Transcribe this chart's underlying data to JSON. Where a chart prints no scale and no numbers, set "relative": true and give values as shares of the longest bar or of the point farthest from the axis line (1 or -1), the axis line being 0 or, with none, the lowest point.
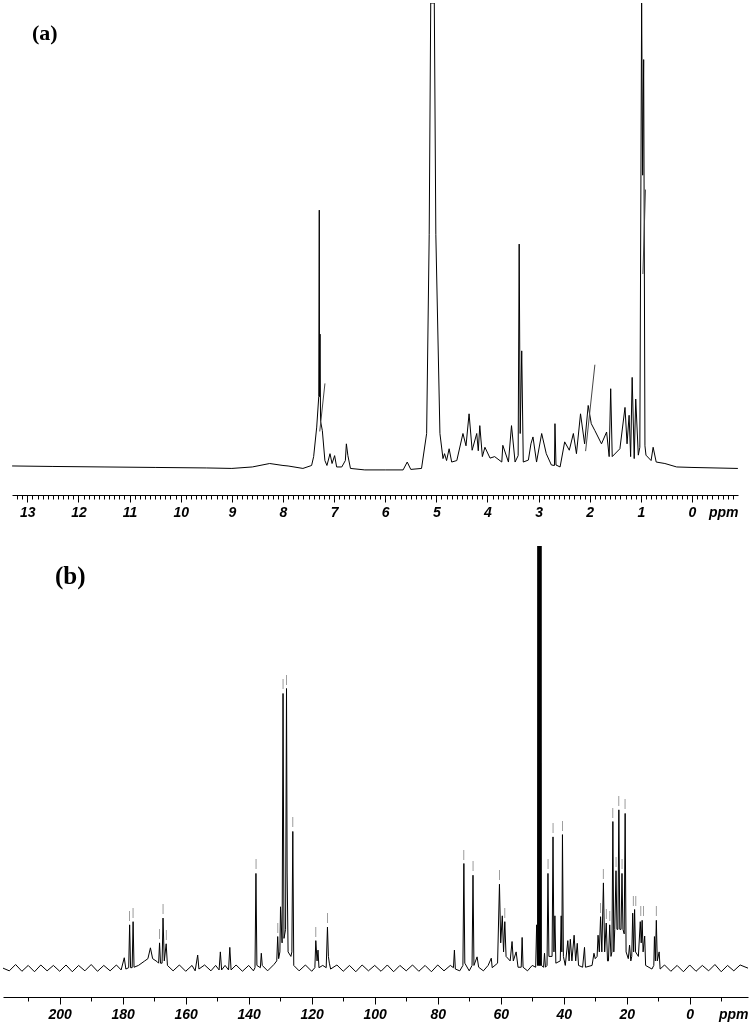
{
  "chart_data": [
    {
      "type": "line",
      "title": "(a)",
      "xlabel": "ppm",
      "relative": true,
      "xlim": [
        13.3,
        -0.9
      ],
      "xticks": [
        {
          "value": 13.2,
          "label": null
        },
        {
          "value": 13.1,
          "label": null
        },
        13,
        {
          "value": 12.9,
          "label": null
        },
        {
          "value": 12.8,
          "label": null
        },
        {
          "value": 12.7,
          "label": null
        },
        {
          "value": 12.6,
          "label": null
        },
        {
          "value": 12.5,
          "label": null
        },
        {
          "value": 12.4,
          "label": null
        },
        {
          "value": 12.3,
          "label": null
        },
        {
          "value": 12.2,
          "label": null
        },
        {
          "value": 12.1,
          "label": null
        },
        12,
        {
          "value": 11.9,
          "label": null
        },
        {
          "value": 11.8,
          "label": null
        },
        {
          "value": 11.7,
          "label": null
        },
        {
          "value": 11.6,
          "label": null
        },
        {
          "value": 11.5,
          "label": null
        },
        {
          "value": 11.4,
          "label": null
        },
        {
          "value": 11.3,
          "label": null
        },
        {
          "value": 11.2,
          "label": null
        },
        {
          "value": 11.1,
          "label": null
        },
        11,
        {
          "value": 10.9,
          "label": null
        },
        {
          "value": 10.8,
          "label": null
        },
        {
          "value": 10.7,
          "label": null
        },
        {
          "value": 10.6,
          "label": null
        },
        {
          "value": 10.5,
          "label": null
        },
        {
          "value": 10.4,
          "label": null
        },
        {
          "value": 10.3,
          "label": null
        },
        {
          "value": 10.2,
          "label": null
        },
        {
          "value": 10.1,
          "label": null
        },
        10,
        {
          "value": 9.9,
          "label": null
        },
        {
          "value": 9.8,
          "label": null
        },
        {
          "value": 9.7,
          "label": null
        },
        {
          "value": 9.6,
          "label": null
        },
        {
          "value": 9.5,
          "label": null
        },
        {
          "value": 9.4,
          "label": null
        },
        {
          "value": 9.3,
          "label": null
        },
        {
          "value": 9.2,
          "label": null
        },
        {
          "value": 9.1,
          "label": null
        },
        9,
        {
          "value": 8.9,
          "label": null
        },
        {
          "value": 8.8,
          "label": null
        },
        {
          "value": 8.7,
          "label": null
        },
        {
          "value": 8.6,
          "label": null
        },
        {
          "value": 8.5,
          "label": null
        },
        {
          "value": 8.4,
          "label": null
        },
        {
          "value": 8.3,
          "label": null
        },
        {
          "value": 8.2,
          "label": null
        },
        {
          "value": 8.1,
          "label": null
        },
        8,
        {
          "value": 7.9,
          "label": null
        },
        {
          "value": 7.8,
          "label": null
        },
        {
          "value": 7.7,
          "label": null
        },
        {
          "value": 7.6,
          "label": null
        },
        {
          "value": 7.5,
          "label": null
        },
        {
          "value": 7.4,
          "label": null
        },
        {
          "value": 7.3,
          "label": null
        },
        {
          "value": 7.2,
          "label": null
        },
        {
          "value": 7.1,
          "label": null
        },
        7,
        {
          "value": 6.9,
          "label": null
        },
        {
          "value": 6.8,
          "label": null
        },
        {
          "value": 6.7,
          "label": null
        },
        {
          "value": 6.6,
          "label": null
        },
        {
          "value": 6.5,
          "label": null
        },
        {
          "value": 6.4,
          "label": null
        },
        {
          "value": 6.3,
          "label": null
        },
        {
          "value": 6.2,
          "label": null
        },
        {
          "value": 6.1,
          "label": null
        },
        6,
        {
          "value": 5.9,
          "label": null
        },
        {
          "value": 5.8,
          "label": null
        },
        {
          "value": 5.7,
          "label": null
        },
        {
          "value": 5.6,
          "label": null
        },
        {
          "value": 5.5,
          "label": null
        },
        {
          "value": 5.4,
          "label": null
        },
        {
          "value": 5.3,
          "label": null
        },
        {
          "value": 5.2,
          "label": null
        },
        {
          "value": 5.1,
          "label": null
        },
        5,
        {
          "value": 4.9,
          "label": null
        },
        {
          "value": 4.8,
          "label": null
        },
        {
          "value": 4.7,
          "label": null
        },
        {
          "value": 4.6,
          "label": null
        },
        {
          "value": 4.5,
          "label": null
        },
        {
          "value": 4.4,
          "label": null
        },
        {
          "value": 4.3,
          "label": null
        },
        {
          "value": 4.2,
          "label": null
        },
        {
          "value": 4.1,
          "label": null
        },
        4,
        {
          "value": 3.9,
          "label": null
        },
        {
          "value": 3.8,
          "label": null
        },
        {
          "value": 3.7,
          "label": null
        },
        {
          "value": 3.6,
          "label": null
        },
        {
          "value": 3.5,
          "label": null
        },
        {
          "value": 3.4,
          "label": null
        },
        {
          "value": 3.3,
          "label": null
        },
        {
          "value": 3.2,
          "label": null
        },
        {
          "value": 3.1,
          "label": null
        },
        3,
        {
          "value": 2.9,
          "label": null
        },
        {
          "value": 2.8,
          "label": null
        },
        {
          "value": 2.7,
          "label": null
        },
        {
          "value": 2.6,
          "label": null
        },
        {
          "value": 2.5,
          "label": null
        },
        {
          "value": 2.4,
          "label": null
        },
        {
          "value": 2.3,
          "label": null
        },
        {
          "value": 2.2,
          "label": null
        },
        {
          "value": 2.1,
          "label": null
        },
        2,
        {
          "value": 1.9,
          "label": null
        },
        {
          "value": 1.8,
          "label": null
        },
        {
          "value": 1.7,
          "label": null
        },
        {
          "value": 1.6,
          "label": null
        },
        {
          "value": 1.5,
          "label": null
        },
        {
          "value": 1.4,
          "label": null
        },
        {
          "value": 1.3,
          "label": null
        },
        {
          "value": 1.2,
          "label": null
        },
        {
          "value": 1.1,
          "label": null
        },
        1,
        {
          "value": 0.9,
          "label": null
        },
        {
          "value": 0.8,
          "label": null
        },
        {
          "value": 0.7,
          "label": null
        },
        {
          "value": 0.6,
          "label": null
        },
        {
          "value": 0.5,
          "label": null
        },
        {
          "value": 0.4,
          "label": null
        },
        {
          "value": 0.3,
          "label": null
        },
        {
          "value": 0.2,
          "label": null
        },
        {
          "value": 0.1,
          "label": null
        },
        0,
        {
          "value": -0.1,
          "label": null
        },
        {
          "value": -0.2,
          "label": null
        },
        {
          "value": -0.3,
          "label": null
        },
        {
          "value": -0.4,
          "label": null
        },
        {
          "value": -0.5,
          "label": null
        },
        {
          "value": -0.6,
          "label": null
        },
        {
          "value": -0.7,
          "label": null
        },
        {
          "value": -0.8,
          "label": null
        }
      ],
      "series": [
        {
          "color": "#000000",
          "x": [
            13.29,
            12.5,
            11.5,
            10.5,
            9.5,
            9.0,
            8.6,
            8.26,
            8.0,
            7.9,
            7.61,
            7.44,
            7.4,
            7.34,
            7.3,
            7.29,
            7.285,
            7.275,
            7.265,
            7.23,
            7.18,
            7.14,
            7.08,
            7.04,
            6.99,
            6.95,
            6.85,
            6.78,
            6.76,
            6.73,
            6.68,
            6.4,
            6.0,
            5.65,
            5.57,
            5.5,
            5.29,
            5.19,
            5.14,
            5.11,
            5.04,
            5.01,
            4.93,
            4.87,
            4.84,
            4.8,
            4.75,
            4.7,
            4.6,
            4.48,
            4.42,
            4.36,
            4.3,
            4.21,
            4.18,
            4.15,
            4.1,
            4.05,
            3.95,
            3.86,
            3.72,
            3.7,
            3.59,
            3.53,
            3.46,
            3.4,
            3.38,
            3.36,
            3.33,
            3.3,
            3.2,
            3.15,
            3.11,
            3.04,
            2.94,
            2.85,
            2.75,
            2.69,
            2.68,
            2.66,
            2.58,
            2.49,
            2.4,
            2.32,
            2.26,
            2.18,
            2.1,
            2.03,
            1.97,
            1.9,
            1.77,
            1.67,
            1.62,
            1.59,
            1.56,
            1.41,
            1.31,
            1.27,
            1.23,
            1.2,
            1.17,
            1.13,
            1.1,
            1.05,
            1.02,
            0.985,
            0.965,
            0.945,
            0.92,
            0.9,
            0.8,
            0.76,
            0.7,
            0.53,
            0.3,
            0.0,
            -0.89
          ],
          "values": [
            0.059,
            0.058,
            0.057,
            0.056,
            0.055,
            0.054,
            0.057,
            0.064,
            0.06,
            0.059,
            0.054,
            0.06,
            0.078,
            0.138,
            0.2,
            0.579,
            0.2,
            0.327,
            0.15,
            0.131,
            0.07,
            0.06,
            0.084,
            0.064,
            0.08,
            0.057,
            0.057,
            0.07,
            0.104,
            0.08,
            0.054,
            0.051,
            0.051,
            0.051,
            0.067,
            0.052,
            0.054,
            0.125,
            0.529,
            1.0,
            1.0,
            0.529,
            0.125,
            0.074,
            0.084,
            0.07,
            0.094,
            0.067,
            0.07,
            0.125,
            0.1,
            0.165,
            0.091,
            0.125,
            0.09,
            0.141,
            0.078,
            0.097,
            0.075,
            0.078,
            0.067,
            0.101,
            0.067,
            0.141,
            0.067,
            0.08,
            0.51,
            0.125,
            0.293,
            0.067,
            0.071,
            0.104,
            0.118,
            0.067,
            0.125,
            0.084,
            0.061,
            0.06,
            0.145,
            0.061,
            0.057,
            0.108,
            0.091,
            0.125,
            0.084,
            0.165,
            0.104,
            0.182,
            0.145,
            0.131,
            0.104,
            0.128,
            0.078,
            0.216,
            0.078,
            0.094,
            0.178,
            0.104,
            0.162,
            0.078,
            0.239,
            0.074,
            0.195,
            0.081,
            0.097,
            1.0,
            0.65,
            0.885,
            0.1,
            0.081,
            0.07,
            0.097,
            0.067,
            0.064,
            0.057,
            0.056,
            0.054
          ]
        },
        {
          "color": "#444444",
          "x": [
            7.28,
            7.18
          ],
          "values": [
            0.13,
            0.226
          ]
        },
        {
          "color": "#444444",
          "x": [
            2.08,
            1.9
          ],
          "values": [
            0.09,
            0.264
          ]
        },
        {
          "color": "#444444",
          "x": [
            0.96,
            0.91
          ],
          "values": [
            0.45,
            0.62
          ]
        }
      ]
    },
    {
      "type": "line",
      "title": "(b)",
      "xlabel": "ppm",
      "relative": true,
      "xlim": [
        218,
        -18.5
      ],
      "xticks": [
        {
          "value": 210,
          "label": null
        },
        200,
        {
          "value": 190,
          "label": null
        },
        180,
        {
          "value": 170,
          "label": null
        },
        160,
        {
          "value": 150,
          "label": null
        },
        140,
        {
          "value": 130,
          "label": null
        },
        120,
        {
          "value": 110,
          "label": null
        },
        100,
        {
          "value": 90,
          "label": null
        },
        80,
        {
          "value": 70,
          "label": null
        },
        60,
        {
          "value": 50,
          "label": null
        },
        40,
        {
          "value": 30,
          "label": null
        },
        20,
        {
          "value": 10,
          "label": null
        },
        0,
        {
          "value": -10,
          "label": null
        }
      ],
      "series": [
        {
          "color": "#000000",
          "x": [
            218,
            216,
            214,
            212,
            210,
            208,
            206,
            204,
            202,
            200,
            198,
            196,
            194,
            192,
            190,
            188,
            186,
            184,
            182,
            180.5,
            179.5,
            179,
            178.1,
            177.8,
            177.5,
            177.0,
            176.7,
            176.4,
            175,
            173,
            172,
            171.2,
            170.5,
            169,
            168.6,
            168.3,
            168.0,
            167.5,
            167.2,
            166.8,
            166.2,
            165.8,
            164,
            162,
            160,
            158,
            157,
            156.2,
            155.8,
            154,
            152,
            150.5,
            149.4,
            149,
            148.6,
            147.5,
            146.4,
            146,
            145.6,
            144,
            142,
            140,
            138.5,
            138,
            137.7,
            137.4,
            136.3,
            136,
            135.7,
            134,
            132,
            131.1,
            130.8,
            130.5,
            130.1,
            129.9,
            129.4,
            129.1,
            128.8,
            128.3,
            128,
            127.8,
            127.5,
            126.6,
            126.3,
            126,
            125.7,
            124,
            122,
            120,
            119,
            118.7,
            118.3,
            118,
            117.7,
            116.5,
            115.4,
            115,
            114.7,
            114.4,
            114,
            112,
            110,
            108,
            106,
            104,
            102,
            100,
            98,
            96,
            94,
            92,
            90,
            88,
            86,
            84,
            82,
            80,
            78,
            76,
            75,
            74.7,
            74.4,
            73,
            72,
            71.7,
            71.4,
            70,
            69.1,
            68.8,
            68.5,
            67.5,
            67,
            65.5,
            64,
            63,
            62.7,
            61,
            60.4,
            60.0,
            59.5,
            59.1,
            58.7,
            58.3,
            57,
            56.4,
            56,
            55.1,
            54.5,
            53.5,
            53.2,
            52.9,
            51.5,
            50,
            48.9,
            48.6,
            48.3,
            48.2,
            48.1,
            48.0,
            47.9,
            47.8,
            47.7,
            47.6,
            47.5,
            47.4,
            47.3,
            47.2,
            47.1,
            46.4,
            46.1,
            45.8,
            45.3,
            45,
            44.7,
            43.7,
            43.4,
            43.1,
            42.8,
            42.5,
            41.1,
            40.8,
            40.6,
            40.4,
            40.1,
            39.5,
            38.7,
            38.3,
            37.9,
            37.4,
            36.7,
            36.2,
            35.7,
            35.3,
            34,
            33.4,
            33.1,
            31,
            30.4,
            30,
            29.4,
            29.1,
            28.7,
            28.3,
            27.9,
            27.4,
            27.0,
            26.5,
            26.1,
            25.8,
            25.4,
            25.0,
            24.7,
            24.4,
            24.1,
            23.8,
            23.4,
            23.1,
            22.8,
            22.5,
            22.2,
            21.8,
            21.5,
            21.2,
            20.8,
            20.5,
            20.2,
            19.5,
            19.1,
            18.7,
            18.4,
            18.1,
            17.8,
            17.5,
            17.2,
            16.3,
            15.7,
            15.4,
            15.1,
            14.8,
            14.3,
            14.0,
            12,
            11.4,
            11.2,
            10.9,
            10.6,
            10.3,
            9.7,
            9.4,
            8,
            6,
            4,
            2,
            0,
            -2,
            -4,
            -6,
            -8,
            -10,
            -12,
            -14,
            -16,
            -18.5
          ],
          "values": [
            0.064,
            0.058,
            0.072,
            0.057,
            0.07,
            0.056,
            0.071,
            0.058,
            0.07,
            0.057,
            0.071,
            0.056,
            0.07,
            0.058,
            0.072,
            0.057,
            0.07,
            0.058,
            0.071,
            0.06,
            0.087,
            0.062,
            0.065,
            0.16,
            0.065,
            0.065,
            0.167,
            0.066,
            0.07,
            0.08,
            0.085,
            0.109,
            0.085,
            0.078,
            0.075,
            0.12,
            0.075,
            0.075,
            0.175,
            0.08,
            0.118,
            0.07,
            0.058,
            0.071,
            0.057,
            0.07,
            0.058,
            0.093,
            0.062,
            0.071,
            0.058,
            0.07,
            0.06,
            0.1,
            0.06,
            0.07,
            0.06,
            0.11,
            0.06,
            0.071,
            0.057,
            0.07,
            0.058,
            0.065,
            0.274,
            0.07,
            0.065,
            0.097,
            0.07,
            0.058,
            0.072,
            0.08,
            0.134,
            0.085,
            0.1,
            0.2,
            0.12,
            0.673,
            0.13,
            0.15,
            0.684,
            0.275,
            0.1,
            0.09,
            0.1,
            0.367,
            0.07,
            0.058,
            0.071,
            0.057,
            0.065,
            0.125,
            0.08,
            0.104,
            0.065,
            0.07,
            0.065,
            0.155,
            0.09,
            0.075,
            0.062,
            0.071,
            0.057,
            0.07,
            0.056,
            0.071,
            0.058,
            0.07,
            0.057,
            0.071,
            0.056,
            0.07,
            0.058,
            0.071,
            0.057,
            0.07,
            0.056,
            0.071,
            0.058,
            0.07,
            0.065,
            0.104,
            0.062,
            0.058,
            0.07,
            0.296,
            0.075,
            0.058,
            0.07,
            0.27,
            0.07,
            0.089,
            0.066,
            0.058,
            0.07,
            0.086,
            0.065,
            0.075,
            0.25,
            0.12,
            0.18,
            0.1,
            0.167,
            0.09,
            0.08,
            0.123,
            0.08,
            0.1,
            0.066,
            0.066,
            0.132,
            0.066,
            0.058,
            0.07,
            0.066,
            0.16,
            0.07,
            1.0,
            0.07,
            1.0,
            0.07,
            1.0,
            0.07,
            1.0,
            0.07,
            1.0,
            0.07,
            1.0,
            0.07,
            0.066,
            0.097,
            0.066,
            0.07,
            0.274,
            0.09,
            0.09,
            0.355,
            0.1,
            0.18,
            0.075,
            0.08,
            0.18,
            0.1,
            0.36,
            0.09,
            0.07,
            0.125,
            0.08,
            0.128,
            0.08,
            0.137,
            0.08,
            0.119,
            0.07,
            0.066,
            0.11,
            0.066,
            0.07,
            0.097,
            0.085,
            0.09,
            0.137,
            0.1,
            0.178,
            0.1,
            0.253,
            0.1,
            0.164,
            0.08,
            0.08,
            0.16,
            0.09,
            0.1,
            0.389,
            0.1,
            0.15,
            0.28,
            0.15,
            0.15,
            0.415,
            0.15,
            0.15,
            0.274,
            0.15,
            0.14,
            0.407,
            0.1,
            0.085,
            0.115,
            0.08,
            0.09,
            0.186,
            0.1,
            0.194,
            0.1,
            0.09,
            0.167,
            0.12,
            0.17,
            0.1,
            0.135,
            0.07,
            0.062,
            0.07,
            0.134,
            0.08,
            0.17,
            0.08,
            0.1,
            0.062,
            0.071,
            0.057,
            0.07,
            0.056,
            0.071,
            0.057,
            0.07,
            0.058,
            0.072,
            0.056,
            0.07,
            0.058,
            0.071,
            0.064
          ]
        }
      ],
      "annotations": [
        {
          "text": "|",
          "x": 177.8,
          "y": 0.16
        },
        {
          "text": "|",
          "x": 176.7,
          "y": 0.167
        },
        {
          "text": "|",
          "x": 168.3,
          "y": 0.12
        },
        {
          "text": "|",
          "x": 167.2,
          "y": 0.175
        },
        {
          "text": "|",
          "x": 166.2,
          "y": 0.118
        },
        {
          "text": "|",
          "x": 137.7,
          "y": 0.274
        },
        {
          "text": "|",
          "x": 130.8,
          "y": 0.134
        },
        {
          "text": "|",
          "x": 129.1,
          "y": 0.673
        },
        {
          "text": "|",
          "x": 128,
          "y": 0.684
        },
        {
          "text": "|",
          "x": 126,
          "y": 0.367
        },
        {
          "text": "|",
          "x": 118.7,
          "y": 0.125
        },
        {
          "text": "|",
          "x": 115,
          "y": 0.155
        },
        {
          "text": "|",
          "x": 71.7,
          "y": 0.296
        },
        {
          "text": "|",
          "x": 68.8,
          "y": 0.27
        },
        {
          "text": "|",
          "x": 60.4,
          "y": 0.25
        },
        {
          "text": "|",
          "x": 58.7,
          "y": 0.167
        },
        {
          "text": "|",
          "x": 45,
          "y": 0.274
        },
        {
          "text": "|",
          "x": 43.4,
          "y": 0.355
        },
        {
          "text": "|",
          "x": 40.4,
          "y": 0.36
        },
        {
          "text": "|",
          "x": 28.3,
          "y": 0.178
        },
        {
          "text": "|",
          "x": 27.4,
          "y": 0.253
        },
        {
          "text": "|",
          "x": 26.5,
          "y": 0.164
        },
        {
          "text": "|",
          "x": 25.4,
          "y": 0.16
        },
        {
          "text": "|",
          "x": 24.4,
          "y": 0.389
        },
        {
          "text": "|",
          "x": 23.4,
          "y": 0.28
        },
        {
          "text": "|",
          "x": 22.5,
          "y": 0.415
        },
        {
          "text": "|",
          "x": 21.5,
          "y": 0.274
        },
        {
          "text": "|",
          "x": 20.5,
          "y": 0.407
        },
        {
          "text": "||",
          "x": 17.5,
          "y": 0.194
        },
        {
          "text": "||",
          "x": 15.1,
          "y": 0.17
        },
        {
          "text": "|",
          "x": 10.6,
          "y": 0.17
        }
      ]
    }
  ]
}
